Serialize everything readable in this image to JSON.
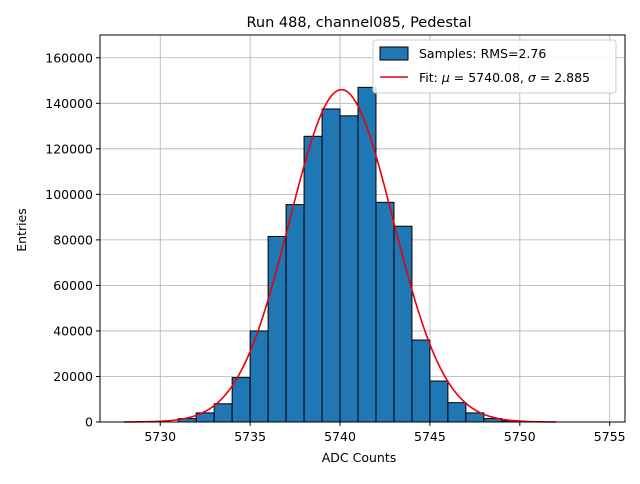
{
  "chart_data": {
    "type": "bar",
    "title": "Run 488, channel085, Pedestal",
    "xlabel": "ADC Counts",
    "ylabel": "Entries",
    "xlim": [
      5726.65,
      5755.85
    ],
    "ylim": [
      0,
      170000
    ],
    "grid": true,
    "legend_position": "top-right",
    "xticks": [
      5730,
      5735,
      5740,
      5745,
      5750,
      5755
    ],
    "yticks": [
      0,
      20000,
      40000,
      60000,
      80000,
      100000,
      120000,
      140000,
      160000
    ],
    "bin_width": 1,
    "histogram": {
      "name": "Samples: RMS=2.76",
      "color": "#1f77b4",
      "edge_color": "#000000",
      "bin_left_edges": [
        5731,
        5732,
        5733,
        5734,
        5735,
        5736,
        5737,
        5738,
        5739,
        5740,
        5741,
        5742,
        5743,
        5744,
        5745,
        5746,
        5747,
        5748,
        5749
      ],
      "counts": [
        1500,
        4000,
        8000,
        19500,
        40000,
        81500,
        95500,
        125500,
        137500,
        134500,
        147000,
        96500,
        86000,
        36000,
        18000,
        8500,
        4000,
        1500,
        500
      ]
    },
    "fit": {
      "name_prefix": "Fit: ",
      "name_mu": "μ",
      "name_mu_value": " = 5740.08, ",
      "name_sigma": "σ",
      "name_sigma_value": " = 2.885",
      "color": "#e8000b",
      "mu": 5740.08,
      "sigma": 2.885,
      "amplitude": 146000,
      "x_range": [
        5728,
        5752
      ]
    }
  }
}
